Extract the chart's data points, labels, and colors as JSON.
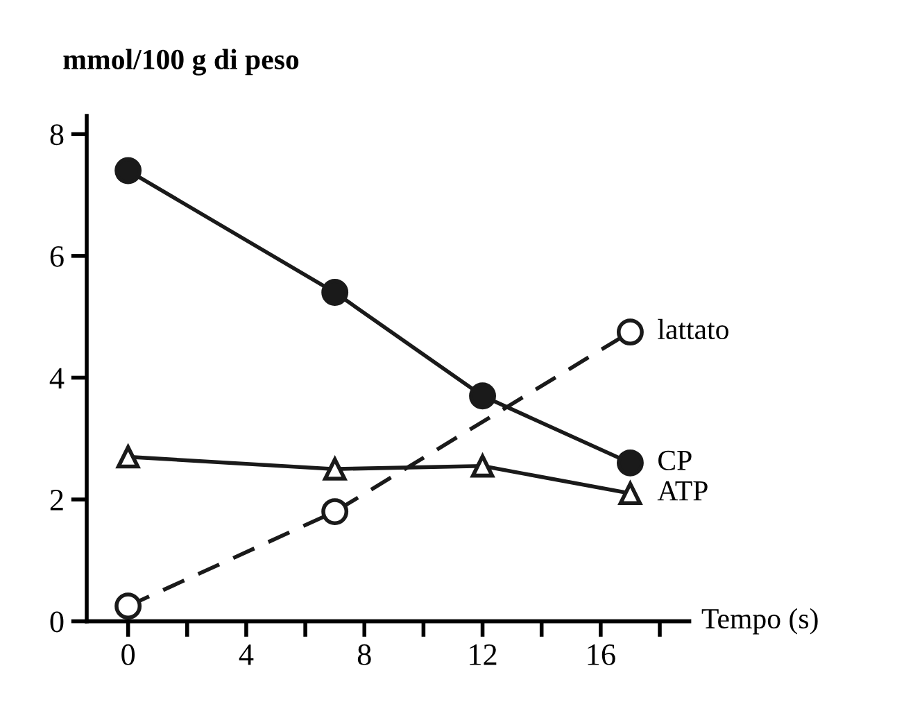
{
  "chart_data": {
    "type": "line",
    "xlabel": "Tempo (s)",
    "ylabel": "mmol/100 g di peso",
    "xlim": [
      -1.4,
      19
    ],
    "ylim": [
      0,
      8.3
    ],
    "xticks": [
      0,
      {
        "value": 2,
        "label": null
      },
      4,
      {
        "value": 6,
        "label": null
      },
      8,
      {
        "value": 10,
        "label": null
      },
      12,
      {
        "value": 14,
        "label": null
      },
      16,
      {
        "value": 18,
        "label": null
      }
    ],
    "yticks": [
      0,
      2,
      4,
      6,
      8
    ],
    "grid": false,
    "legend": false,
    "series": [
      {
        "name": "lattato",
        "color": "#1a1a1a",
        "x": [
          0,
          7,
          17
        ],
        "values": [
          0.25,
          1.8,
          4.75
        ],
        "marker": "circle",
        "line_style": "dashed"
      },
      {
        "name": "CP",
        "color": "#1a1a1a",
        "x": [
          0,
          7,
          12,
          17
        ],
        "values": [
          7.4,
          5.4,
          3.7,
          2.6
        ],
        "marker": "circle",
        "line_style": "solid"
      },
      {
        "name": "ATP",
        "color": "#1a1a1a",
        "x": [
          0,
          7,
          12,
          17
        ],
        "values": [
          2.7,
          2.5,
          2.55,
          2.1
        ],
        "marker": "triangle",
        "line_style": "solid"
      }
    ]
  }
}
